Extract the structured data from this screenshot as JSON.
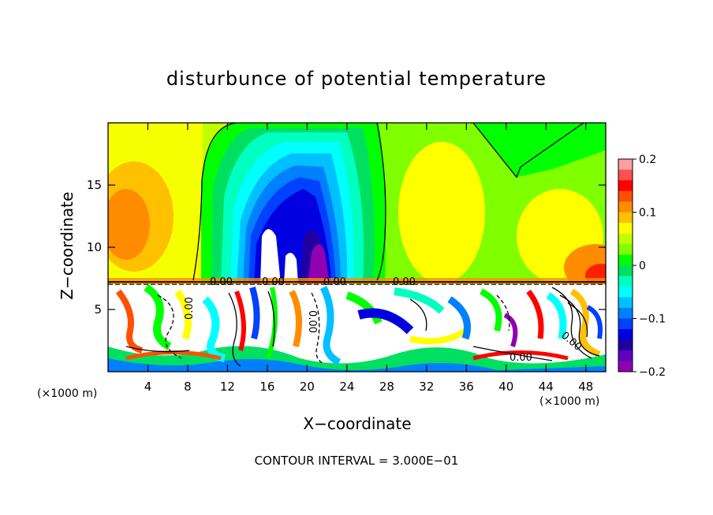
{
  "chart_data": {
    "type": "heatmap",
    "title": "disturbunce of potential temperature",
    "xlabel": "X−coordinate",
    "ylabel": "Z−coordinate",
    "x_unit_left": "(×1000 m)",
    "x_unit_right": "(×1000 m)",
    "xlim": [
      0,
      50
    ],
    "ylim": [
      0,
      20
    ],
    "xticks": [
      4,
      8,
      12,
      16,
      20,
      24,
      28,
      32,
      36,
      40,
      44,
      48
    ],
    "yticks": [
      5,
      10,
      15
    ],
    "colorbar": {
      "range": [
        -0.2,
        0.2
      ],
      "ticks": [
        "0.2",
        "0.1",
        "0",
        "−0.1",
        "−0.2"
      ],
      "tick_values": [
        0.2,
        0.1,
        0,
        -0.1,
        -0.2
      ],
      "colors": [
        "#ffa0a0",
        "#ff5050",
        "#ff0000",
        "#ff5000",
        "#ff8c00",
        "#ffc000",
        "#ffff00",
        "#c0ff00",
        "#80ff00",
        "#00ff00",
        "#00e060",
        "#00ffc0",
        "#00ffff",
        "#00c0ff",
        "#0080ff",
        "#0040ff",
        "#0000e0",
        "#2000a0",
        "#6000c0",
        "#9000b0"
      ]
    },
    "contour_labels": [
      "0.00",
      "0.00",
      "0.00",
      "0.00",
      "0.00",
      "0.00",
      "0.00",
      "0.00"
    ],
    "note": "CONTOUR INTERVAL = 3.000E−01"
  }
}
